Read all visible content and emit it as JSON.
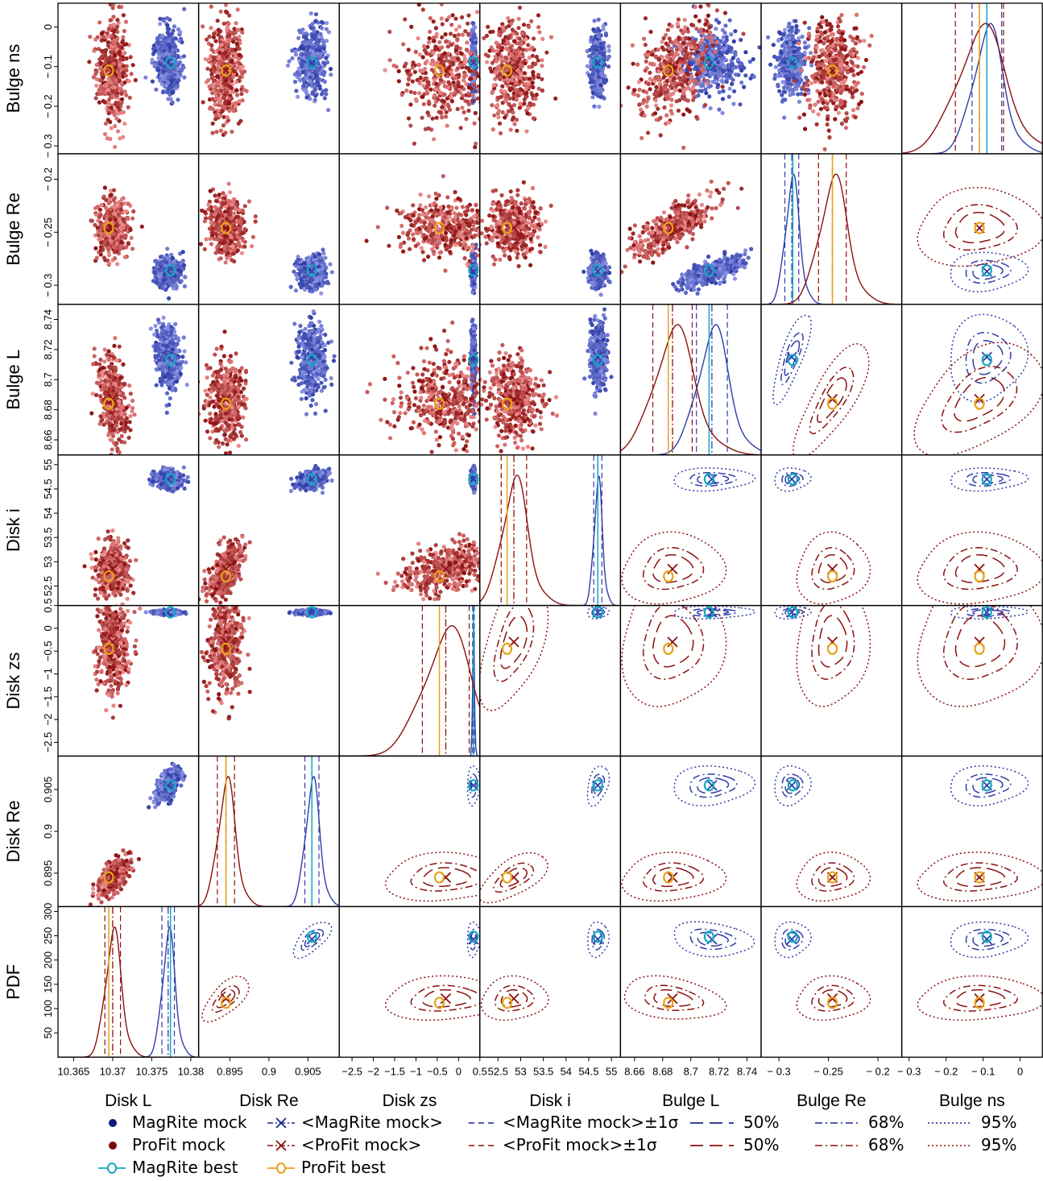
{
  "chart_data": {
    "type": "scatter",
    "title": "",
    "parameters": [
      "Disk L",
      "Disk Re",
      "Disk zs",
      "Disk i",
      "Bulge L",
      "Bulge Re",
      "Bulge ns"
    ],
    "row_labels": [
      "Bulge ns",
      "Bulge Re",
      "Bulge L",
      "Disk i",
      "Disk zs",
      "Disk Re",
      "PDF"
    ],
    "diagonal_label": "PDF",
    "axes": {
      "Disk L": {
        "range": [
          10.363,
          10.381
        ],
        "ticks": [
          10.365,
          10.37,
          10.375,
          10.38
        ],
        "tick_labels": [
          "10.365",
          "10.37",
          "10.375",
          "10.38"
        ]
      },
      "Disk Re": {
        "range": [
          0.891,
          0.909
        ],
        "ticks": [
          0.895,
          0.9,
          0.905
        ],
        "tick_labels": [
          "0.895",
          "0.9",
          "0.905"
        ]
      },
      "Disk zs": {
        "range": [
          -2.8,
          0.5
        ],
        "ticks": [
          -2.5,
          -2,
          -1.5,
          -1,
          -0.5,
          0,
          0.5
        ],
        "tick_labels": [
          "−2.5",
          "−2",
          "−1.5",
          "−1",
          "−0.5",
          "0",
          "0.5"
        ]
      },
      "Disk i": {
        "range": [
          52.1,
          55.2
        ],
        "ticks": [
          52.5,
          53,
          53.5,
          54,
          54.5,
          55
        ],
        "tick_labels": [
          "52.5",
          "53",
          "53.5",
          "54",
          "54.5",
          "55"
        ]
      },
      "Bulge L": {
        "range": [
          8.65,
          8.75
        ],
        "ticks": [
          8.66,
          8.68,
          8.7,
          8.72,
          8.74
        ],
        "tick_labels": [
          "8.66",
          "8.68",
          "8.7",
          "8.72",
          "8.74"
        ]
      },
      "Bulge Re": {
        "range": [
          -0.318,
          -0.176
        ],
        "ticks": [
          -0.3,
          -0.25,
          -0.2
        ],
        "tick_labels": [
          "− 0.3",
          "− 0.25",
          "− 0.2"
        ]
      },
      "Bulge ns": {
        "range": [
          -0.32,
          0.06
        ],
        "ticks": [
          -0.3,
          -0.2,
          -0.1,
          0
        ],
        "tick_labels": [
          "− 0.3",
          "− 0.2",
          "− 0.1",
          "0"
        ]
      },
      "PDF": {
        "range": [
          0,
          310
        ],
        "ticks": [
          50,
          100,
          150,
          200,
          250,
          300
        ],
        "tick_labels": [
          "50",
          "100",
          "150",
          "200",
          "250",
          "300"
        ]
      }
    },
    "series": [
      {
        "name": "MagRite mock",
        "color": "#2e3da8",
        "point_color_light": "#8d95e4",
        "mean": {
          "Disk L": 10.3771,
          "Disk Re": 0.9055,
          "Disk zs": 0.35,
          "Disk i": 54.7,
          "Bulge L": 8.715,
          "Bulge Re": -0.287,
          "Bulge ns": -0.09
        },
        "sigma": {
          "Disk L": 0.0008,
          "Disk Re": 0.0009,
          "Disk zs": 0.02,
          "Disk i": 0.09,
          "Bulge L": 0.011,
          "Bulge Re": 0.007,
          "Bulge ns": 0.04
        },
        "best": {
          "Disk L": 10.3774,
          "Disk Re": 0.9055,
          "Disk zs": 0.35,
          "Disk i": 54.7,
          "Bulge L": 8.713,
          "Bulge Re": -0.286,
          "Bulge ns": -0.09
        },
        "correlations": [
          [
            "Bulge L",
            "Bulge Re",
            0.75
          ],
          [
            "Disk L",
            "Bulge L",
            -0.3
          ],
          [
            "Disk L",
            "Disk Re",
            0.6
          ],
          [
            "Disk Re",
            "Disk i",
            0.3
          ]
        ]
      },
      {
        "name": "ProFit mock",
        "color": "#8b1010",
        "point_color_light": "#ef8f8f",
        "mean": {
          "Disk L": 10.37,
          "Disk Re": 0.8945,
          "Disk zs": -0.3,
          "Disk i": 52.85,
          "Bulge L": 8.687,
          "Bulge Re": -0.246,
          "Bulge ns": -0.11
        },
        "sigma": {
          "Disk L": 0.001,
          "Disk Re": 0.0011,
          "Disk zs": 0.55,
          "Disk i": 0.28,
          "Bulge L": 0.014,
          "Bulge Re": 0.014,
          "Bulge ns": 0.065
        },
        "best": {
          "Disk L": 10.3695,
          "Disk Re": 0.8945,
          "Disk zs": -0.45,
          "Disk i": 52.7,
          "Bulge L": 8.684,
          "Bulge Re": -0.246,
          "Bulge ns": -0.11
        },
        "correlations": [
          [
            "Bulge L",
            "Bulge Re",
            0.75
          ],
          [
            "Disk L",
            "Bulge L",
            -0.35
          ],
          [
            "Disk L",
            "Disk Re",
            0.6
          ],
          [
            "Disk Re",
            "Disk i",
            0.55
          ],
          [
            "Disk zs",
            "Disk i",
            0.45
          ],
          [
            "Bulge L",
            "Bulge ns",
            0.4
          ]
        ]
      }
    ],
    "contour_levels": [
      "50%",
      "68%",
      "95%"
    ],
    "grid": false,
    "legend_position": "bottom",
    "legend": [
      {
        "label": "MagRite mock",
        "marker": "dot",
        "color": "#0d1a7a"
      },
      {
        "label": "<MagRite mock>",
        "marker": "x-dotdash",
        "color": "#1a2a8f"
      },
      {
        "label": "<MagRite mock>±1σ",
        "marker": "dash",
        "color": "#1a2a8f"
      },
      {
        "label": "50%",
        "marker": "longdash",
        "color": "#1a2a8f"
      },
      {
        "label": "68%",
        "marker": "dotdash",
        "color": "#1a2a8f"
      },
      {
        "label": "95%",
        "marker": "dotted",
        "color": "#1a2a8f"
      },
      {
        "label": "ProFit mock",
        "marker": "dot",
        "color": "#7a0a0a"
      },
      {
        "label": "<ProFit mock>",
        "marker": "x-dotdash",
        "color": "#8b1010"
      },
      {
        "label": "<ProFit mock>±1σ",
        "marker": "dash",
        "color": "#8b1010"
      },
      {
        "label": "50%",
        "marker": "longdash",
        "color": "#8b1010"
      },
      {
        "label": "68%",
        "marker": "dotdash",
        "color": "#8b1010"
      },
      {
        "label": "95%",
        "marker": "dotted",
        "color": "#8b1010"
      },
      {
        "label": "MagRite best",
        "marker": "o-line",
        "color": "#17a7c4"
      },
      {
        "label": "ProFit best",
        "marker": "o-line",
        "color": "#e8a318"
      }
    ]
  }
}
